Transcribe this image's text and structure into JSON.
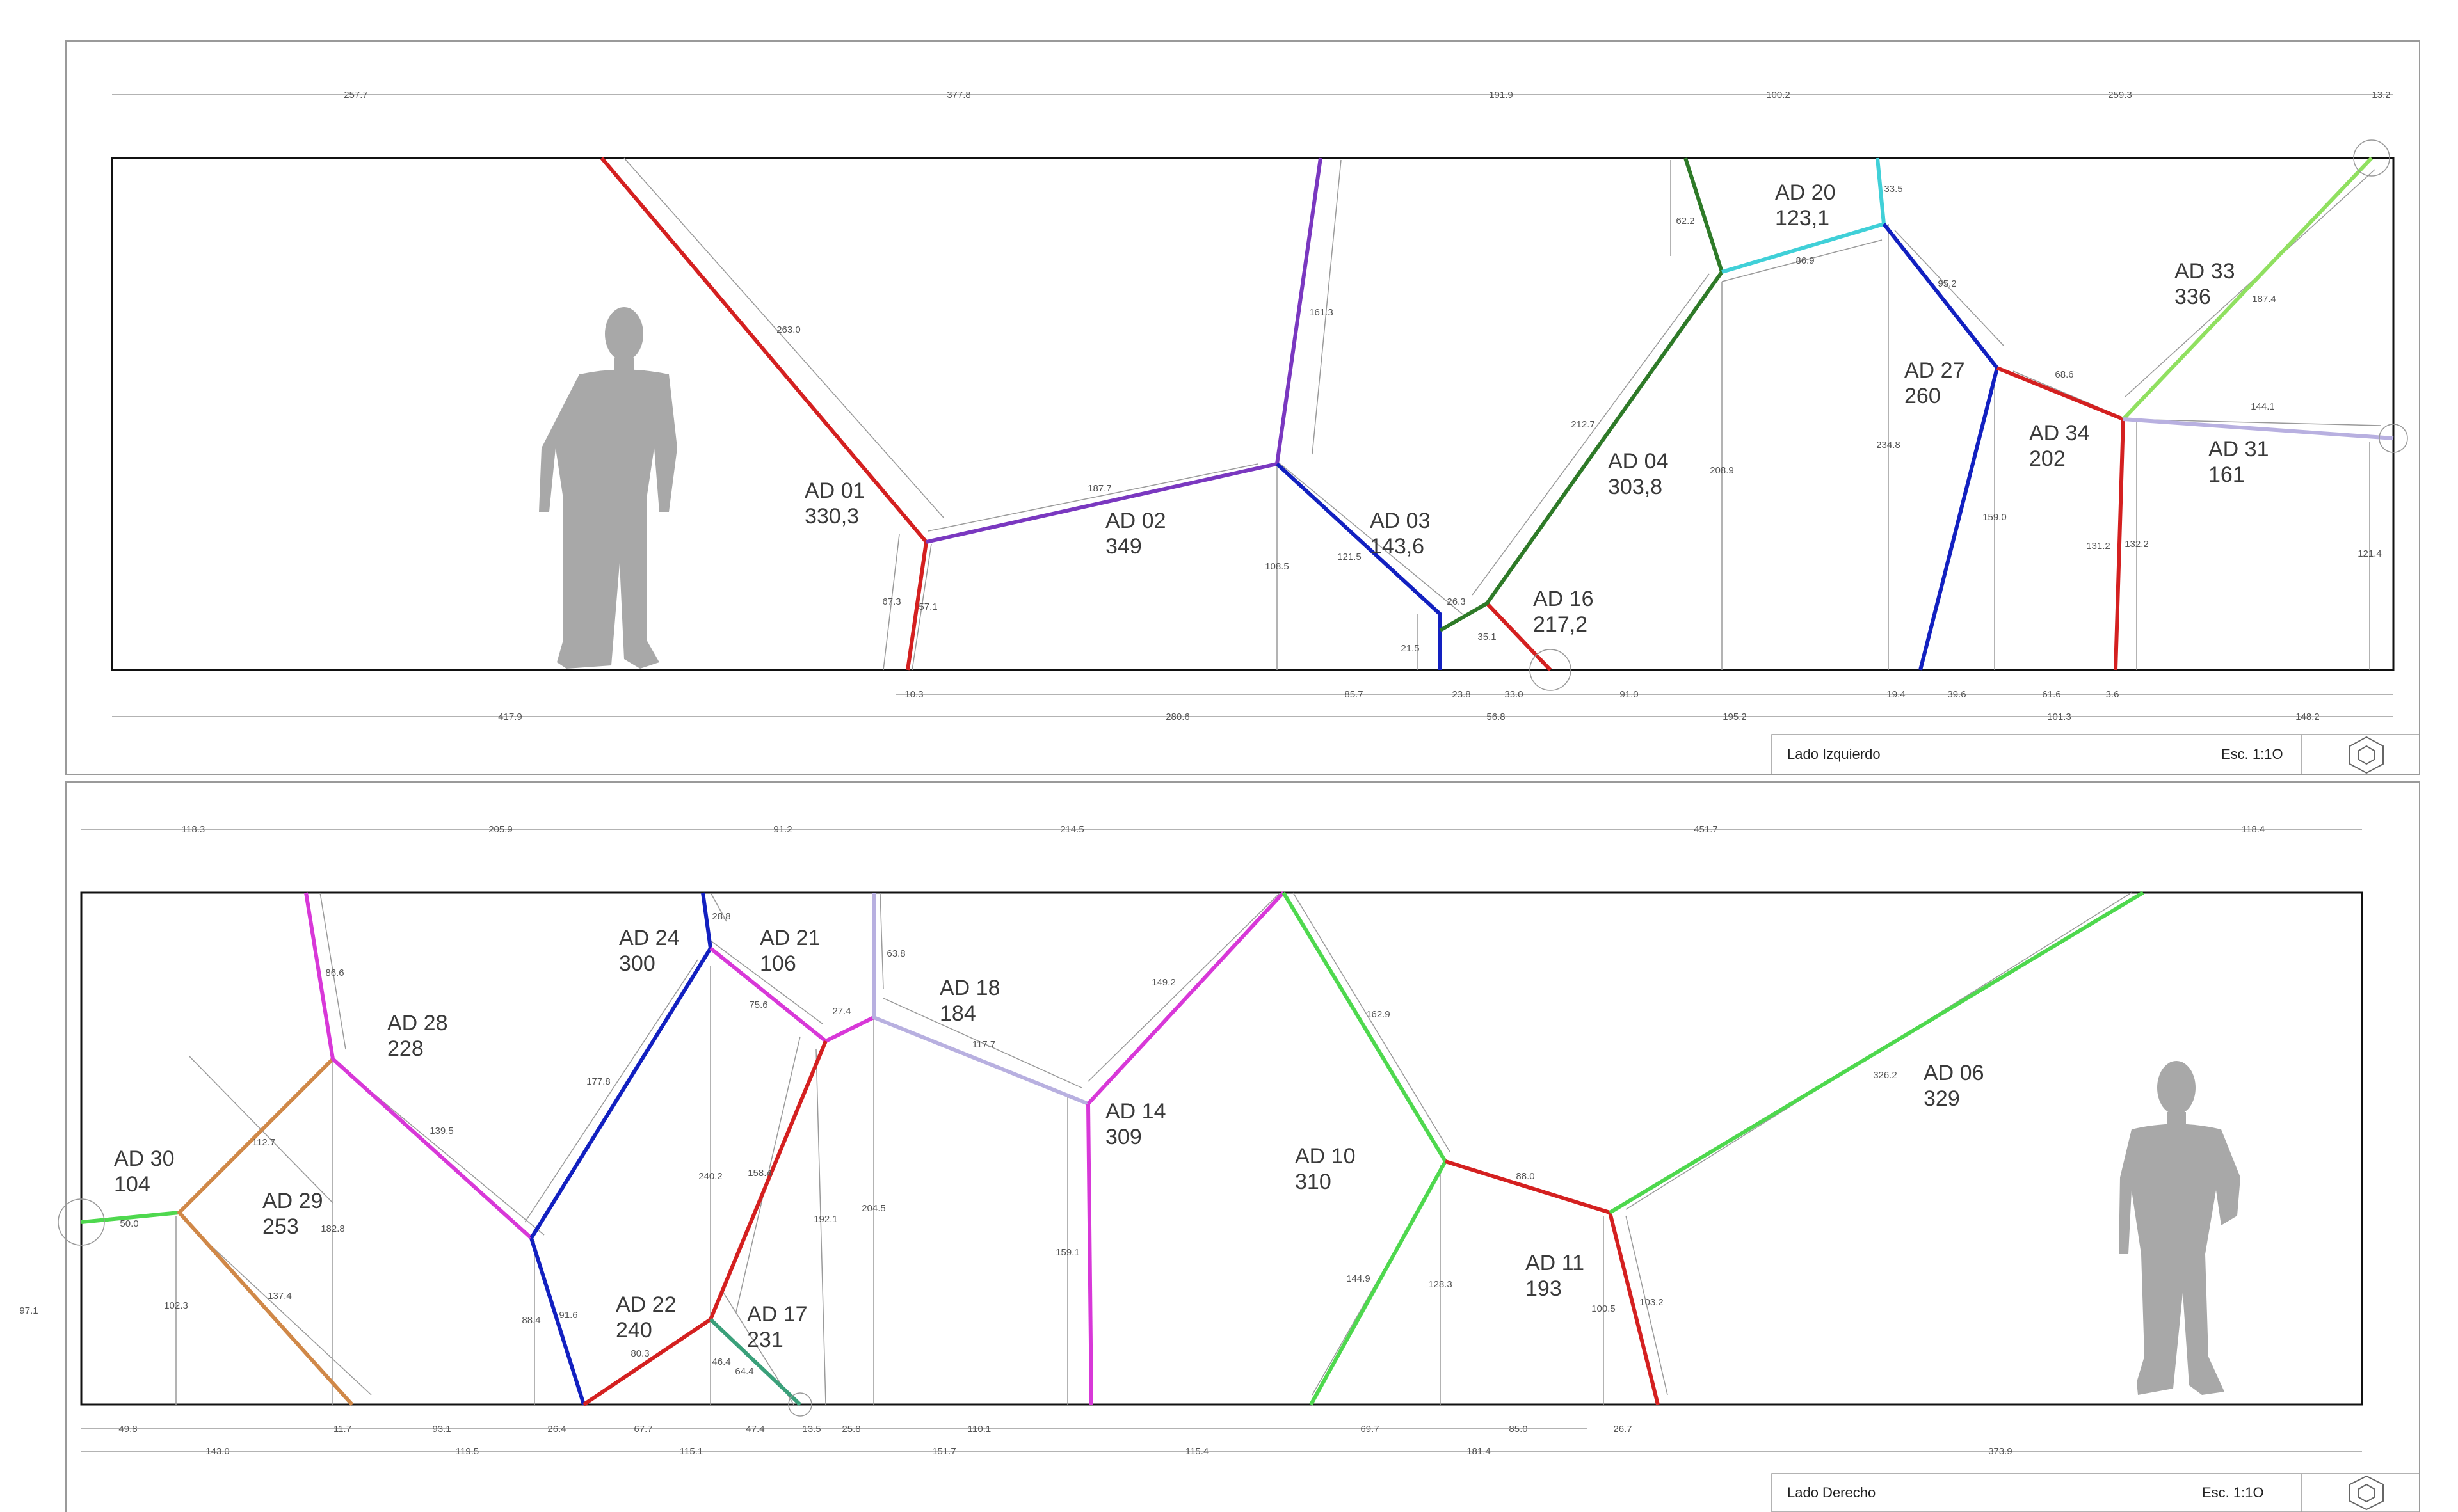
{
  "colors": {
    "red": "#d42020",
    "purple": "#7a38c0",
    "blue": "#1220c0",
    "darkgreen": "#2e7a28",
    "cyan": "#40d0d8",
    "lightgreen": "#90e060",
    "lavender": "#b8b0e0",
    "magenta": "#d838d8",
    "orange": "#d08848",
    "green": "#4ed84e",
    "teal": "#3aa07a",
    "dim": "#9a9a9a",
    "figure": "#a8a8a8"
  },
  "panels": [
    {
      "title": "Lado Izquierdo",
      "scale": "Esc. 1:1O",
      "pieces": [
        {
          "code": "AD 01",
          "value": "330,3"
        },
        {
          "code": "AD 02",
          "value": "349"
        },
        {
          "code": "AD 03",
          "value": "143,6"
        },
        {
          "code": "AD 16",
          "value": "217,2"
        },
        {
          "code": "AD 04",
          "value": "303,8"
        },
        {
          "code": "AD 20",
          "value": "123,1"
        },
        {
          "code": "AD 27",
          "value": "260"
        },
        {
          "code": "AD 34",
          "value": "202"
        },
        {
          "code": "AD 33",
          "value": "336"
        },
        {
          "code": "AD 31",
          "value": "161"
        }
      ],
      "top_dims": [
        "257.7",
        "377.8",
        "191.9",
        "100.2",
        "259.3",
        "13.2"
      ],
      "bottom_dims_1": [
        "10.3",
        "85.7",
        "23.8",
        "33.0",
        "91.0",
        "19.4",
        "39.6",
        "61.6",
        "3.6"
      ],
      "bottom_dims_2": [
        "417.9",
        "280.6",
        "56.8",
        "195.2",
        "101.3",
        "148.2"
      ],
      "inner_dims": [
        "263.0",
        "187.7",
        "161.3",
        "108.5",
        "121.5",
        "26.3",
        "21.5",
        "35.1",
        "212.7",
        "62.2",
        "86.9",
        "33.5",
        "208.9",
        "95.2",
        "234.8",
        "68.6",
        "187.4",
        "144.1",
        "159.0",
        "131.2",
        "132.2",
        "121.4",
        "67.3",
        "57.1"
      ]
    },
    {
      "title": "Lado Derecho",
      "scale": "Esc. 1:1O",
      "pieces": [
        {
          "code": "AD 30",
          "value": "104"
        },
        {
          "code": "AD 29",
          "value": "253"
        },
        {
          "code": "AD 28",
          "value": "228"
        },
        {
          "code": "AD 24",
          "value": "300"
        },
        {
          "code": "AD 21",
          "value": "106"
        },
        {
          "code": "AD 22",
          "value": "240"
        },
        {
          "code": "AD 17",
          "value": "231"
        },
        {
          "code": "AD 18",
          "value": "184"
        },
        {
          "code": "AD 14",
          "value": "309"
        },
        {
          "code": "AD 10",
          "value": "310"
        },
        {
          "code": "AD 11",
          "value": "193"
        },
        {
          "code": "AD 06",
          "value": "329"
        }
      ],
      "top_dims": [
        "118.3",
        "205.9",
        "91.2",
        "214.5",
        "451.7",
        "118.4"
      ],
      "bottom_dims_1": [
        "49.8",
        "11.7",
        "93.1",
        "26.4",
        "67.7",
        "47.4",
        "13.5",
        "25.8",
        "110.1",
        "69.7",
        "85.0",
        "26.7"
      ],
      "bottom_dims_2": [
        "143.0",
        "119.5",
        "115.1",
        "151.7",
        "115.4",
        "181.4",
        "373.9"
      ],
      "left_dim": "97.1",
      "inner_dims": [
        "86.6",
        "28.8",
        "63.8",
        "75.6",
        "27.4",
        "117.7",
        "149.2",
        "162.9",
        "326.2",
        "112.7",
        "139.5",
        "177.8",
        "240.2",
        "158.4",
        "192.1",
        "204.5",
        "50.0",
        "102.3",
        "182.8",
        "137.4",
        "88.4",
        "91.6",
        "80.3",
        "46.4",
        "64.4",
        "159.1",
        "144.9",
        "128.3",
        "88.0",
        "100.5",
        "103.2"
      ]
    }
  ]
}
